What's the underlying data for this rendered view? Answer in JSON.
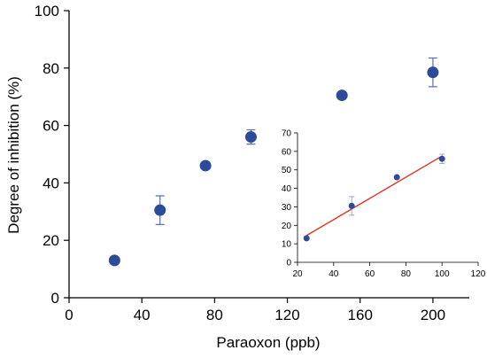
{
  "colors": {
    "marker": "#2e4a9b",
    "errbar": "#5a6fb5",
    "inset_errbar": "#8a96cc",
    "fit_line": "#e83020"
  },
  "chart_data": [
    {
      "type": "scatter",
      "id": "main",
      "title": "",
      "xlabel": "Paraoxon (ppb)",
      "ylabel": "Degree of inhibition (%)",
      "xlim": [
        0,
        220
      ],
      "ylim": [
        0,
        100
      ],
      "xticks": [
        0,
        40,
        80,
        120,
        160,
        200
      ],
      "yticks": [
        0,
        20,
        40,
        60,
        80,
        100
      ],
      "grid": false,
      "points": [
        {
          "x": 25,
          "y": 13,
          "err": 0
        },
        {
          "x": 50,
          "y": 30.5,
          "err": 5
        },
        {
          "x": 75,
          "y": 46,
          "err": 0
        },
        {
          "x": 100,
          "y": 56,
          "err": 2.5
        },
        {
          "x": 150,
          "y": 70.5,
          "err": 0
        },
        {
          "x": 200,
          "y": 78.5,
          "err": 5
        }
      ]
    },
    {
      "type": "scatter",
      "id": "inset",
      "title": "",
      "xlabel": "",
      "ylabel": "",
      "xlim": [
        20,
        120
      ],
      "ylim": [
        0,
        70
      ],
      "xticks": [
        20,
        40,
        60,
        80,
        100,
        120
      ],
      "yticks": [
        0,
        10,
        20,
        30,
        40,
        50,
        60,
        70
      ],
      "grid": false,
      "points": [
        {
          "x": 25,
          "y": 13,
          "err": 0
        },
        {
          "x": 50,
          "y": 30.5,
          "err": 5
        },
        {
          "x": 75,
          "y": 46,
          "err": 0
        },
        {
          "x": 100,
          "y": 56,
          "err": 2.5
        }
      ],
      "fit_line": {
        "x": [
          25,
          100
        ],
        "y": [
          14.5,
          57.5
        ]
      }
    }
  ]
}
